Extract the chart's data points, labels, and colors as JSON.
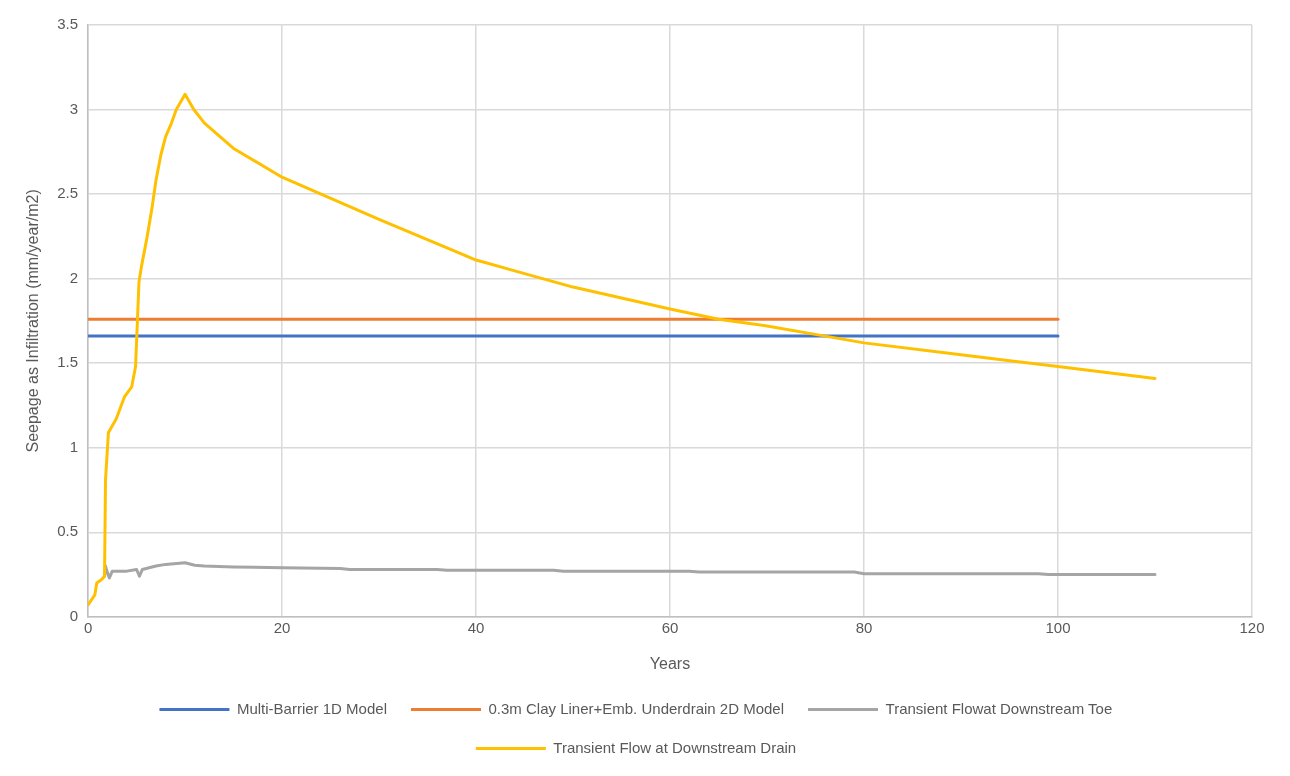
{
  "chart_data": {
    "type": "line",
    "xlabel": "Years",
    "ylabel": "Seepage as Infiltration (mm/year/m2)",
    "xlim": [
      0,
      120
    ],
    "xticks": [
      0,
      20,
      40,
      60,
      80,
      100,
      120
    ],
    "ylim": [
      0,
      3.5
    ],
    "yticks": [
      0,
      0.5,
      1,
      1.5,
      2,
      2.5,
      3,
      3.5
    ],
    "grid": true,
    "legend": "bottom",
    "marker": "none",
    "line_style": "solid",
    "series": [
      {
        "name": "Multi-Barrier 1D Model",
        "color": "#4472c4",
        "x": [
          0,
          100
        ],
        "values": [
          1.66,
          1.66
        ]
      },
      {
        "name": "0.3m Clay Liner+Emb. Underdrain 2D Model",
        "color": "#ed7d31",
        "x": [
          0,
          100
        ],
        "values": [
          1.76,
          1.76
        ]
      },
      {
        "name": "Transient Flowat Downstream Toe",
        "color": "#a5a5a5",
        "x": [
          1.7,
          1.8,
          2.0,
          2.2,
          2.5,
          3,
          4,
          5,
          5.3,
          5.6,
          7,
          8,
          10,
          11,
          12,
          15,
          20,
          26,
          27,
          36,
          37,
          48,
          49,
          62,
          63,
          79,
          80,
          98,
          99,
          110
        ],
        "values": [
          0.24,
          0.3,
          0.26,
          0.23,
          0.27,
          0.27,
          0.27,
          0.28,
          0.24,
          0.28,
          0.3,
          0.31,
          0.32,
          0.305,
          0.3,
          0.295,
          0.29,
          0.285,
          0.28,
          0.28,
          0.275,
          0.275,
          0.27,
          0.27,
          0.265,
          0.265,
          0.255,
          0.255,
          0.25,
          0.25
        ]
      },
      {
        "name": "Transient Flow at Downstream Drain",
        "color": "#ffc000",
        "x": [
          0,
          0.7,
          0.9,
          1.4,
          1.7,
          1.8,
          2.1,
          2.9,
          3.75,
          4.5,
          4.9,
          5.25,
          5.5,
          6.1,
          6.6,
          7,
          7.5,
          8,
          8.6,
          9.1,
          10,
          10.9,
          12,
          15,
          20,
          30,
          40,
          50,
          60,
          65,
          70,
          76,
          80,
          90,
          100,
          110
        ],
        "values": [
          0.07,
          0.13,
          0.2,
          0.22,
          0.24,
          0.81,
          1.09,
          1.17,
          1.3,
          1.36,
          1.48,
          1.98,
          2.07,
          2.25,
          2.42,
          2.58,
          2.73,
          2.84,
          2.92,
          3.0,
          3.09,
          3.0,
          2.92,
          2.77,
          2.6,
          2.35,
          2.11,
          1.95,
          1.82,
          1.76,
          1.72,
          1.66,
          1.62,
          1.55,
          1.48,
          1.41
        ]
      }
    ]
  }
}
